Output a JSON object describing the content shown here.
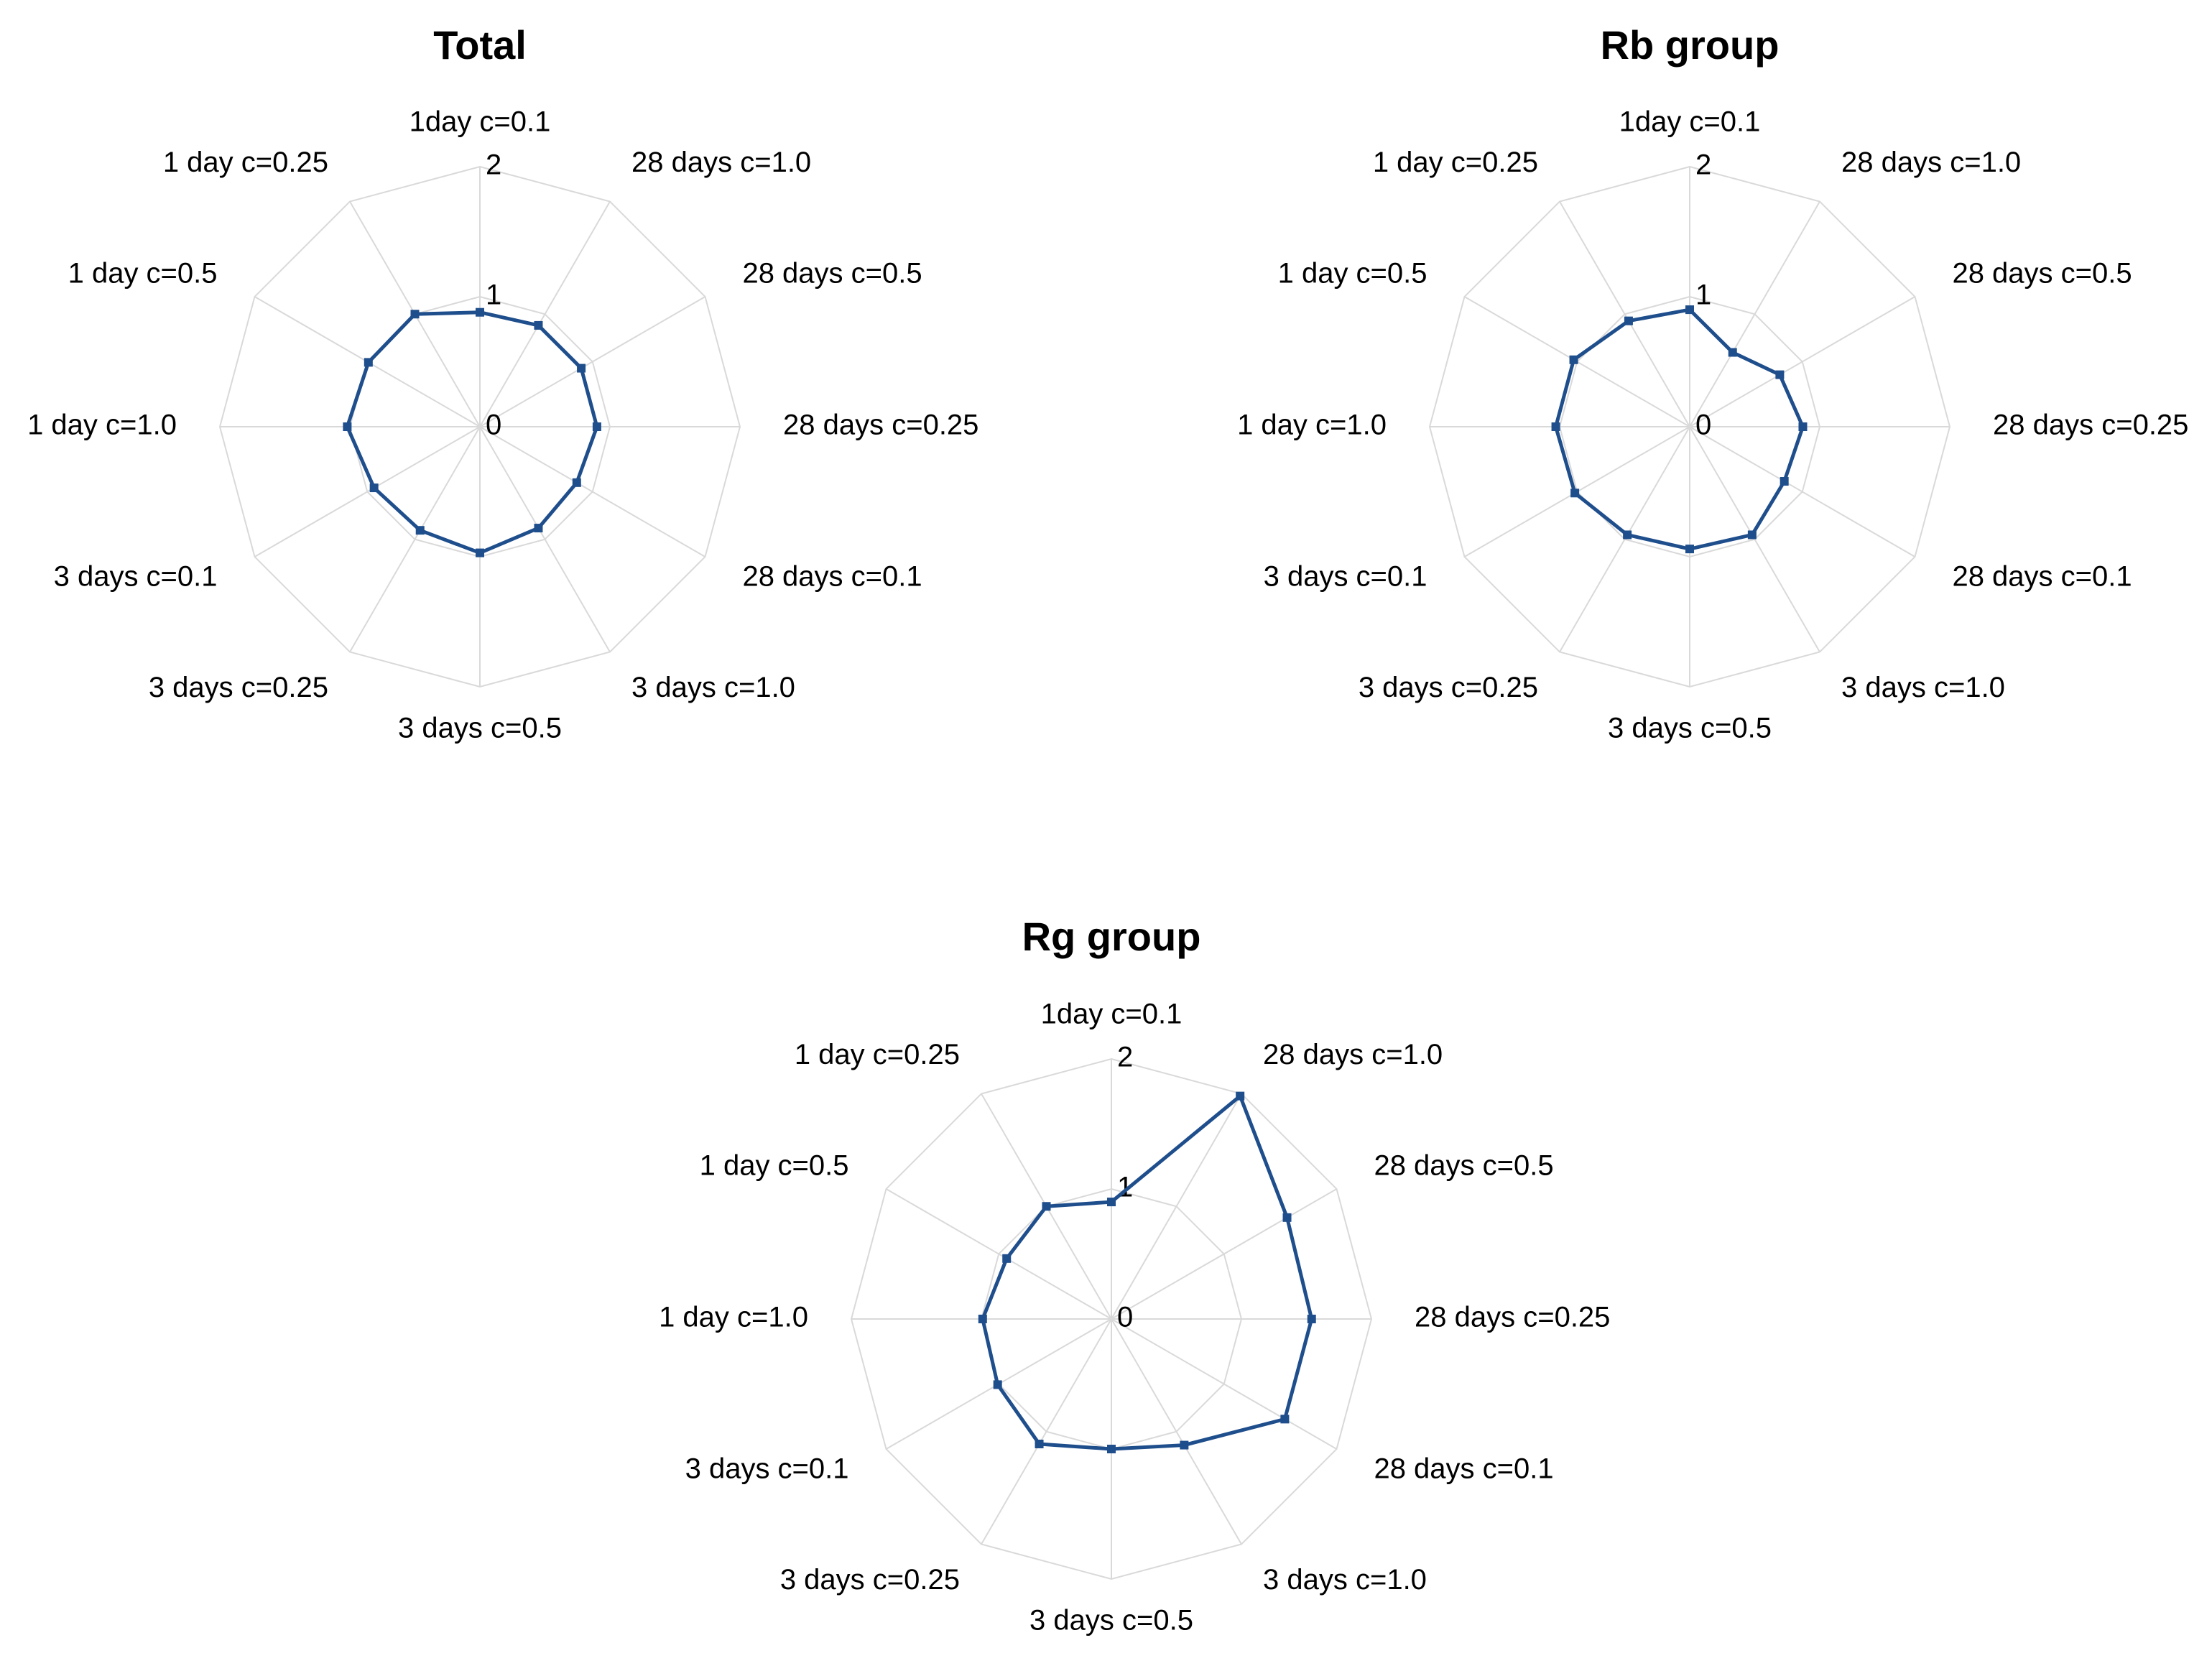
{
  "chart_data": [
    {
      "type": "radar",
      "title": "Total",
      "categories": [
        "1day c=0.1",
        "28 days c=1.0",
        "28 days c=0.5",
        "28 days c=0.25",
        "28 days c=0.1",
        "3 days c=1.0",
        "3 days c=0.5",
        "3 days c=0.25",
        "3 days c=0.1",
        "1 day c=1.0",
        "1 day c=0.5",
        "1 day c=0.25"
      ],
      "tick_labels": [
        "0",
        "1",
        "2"
      ],
      "rlim": [
        0,
        2
      ],
      "grid": true,
      "color": "#1f4e8c",
      "series": [
        {
          "values": [
            0.88,
            0.9,
            0.9,
            0.9,
            0.86,
            0.9,
            0.97,
            0.92,
            0.94,
            1.02,
            0.99,
            1.0
          ]
        }
      ]
    },
    {
      "type": "radar",
      "title": "Rb group",
      "categories": [
        "1day c=0.1",
        "28 days c=1.0",
        "28 days c=0.5",
        "28 days c=0.25",
        "28 days c=0.1",
        "3 days c=1.0",
        "3 days c=0.5",
        "3 days c=0.25",
        "3 days c=0.1",
        "1 day c=1.0",
        "1 day c=0.5",
        "1 day c=0.25"
      ],
      "tick_labels": [
        "0",
        "1",
        "2"
      ],
      "rlim": [
        0,
        2
      ],
      "grid": true,
      "color": "#1f4e8c",
      "series": [
        {
          "values": [
            0.9,
            0.66,
            0.8,
            0.87,
            0.84,
            0.96,
            0.94,
            0.96,
            1.02,
            1.03,
            1.03,
            0.94
          ]
        }
      ]
    },
    {
      "type": "radar",
      "title": "Rg group",
      "categories": [
        "1day c=0.1",
        "28 days c=1.0",
        "28 days c=0.5",
        "28 days c=0.25",
        "28 days c=0.1",
        "3 days c=1.0",
        "3 days c=0.5",
        "3 days c=0.25",
        "3 days c=0.1",
        "1 day c=1.0",
        "1 day c=0.5",
        "1 day c=0.25"
      ],
      "tick_labels": [
        "0",
        "1",
        "2"
      ],
      "rlim": [
        0,
        2
      ],
      "grid": true,
      "color": "#1f4e8c",
      "series": [
        {
          "values": [
            0.9,
            1.98,
            1.56,
            1.54,
            1.54,
            1.12,
            1.0,
            1.11,
            1.01,
            0.99,
            0.93,
            1.0
          ]
        }
      ]
    }
  ]
}
